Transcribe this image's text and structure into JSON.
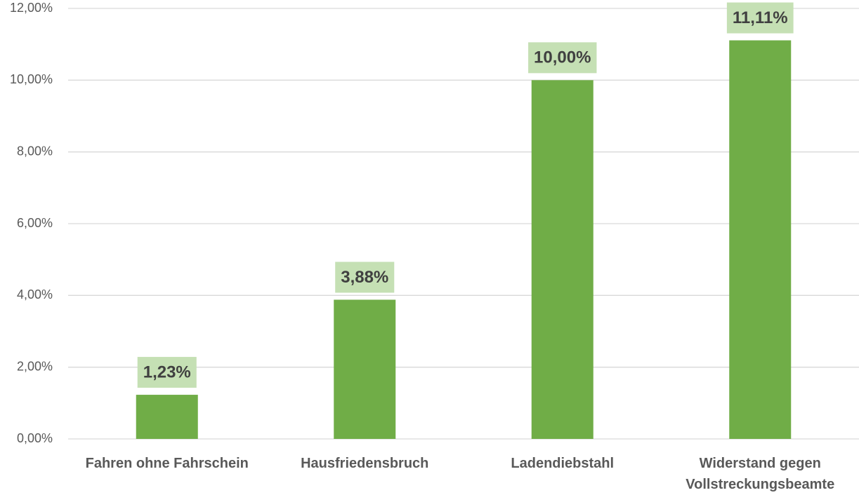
{
  "chart_data": {
    "type": "bar",
    "categories": [
      "Fahren ohne Fahrschein",
      "Hausfriedensbruch",
      "Ladendiebstahl",
      "Widerstand gegen Vollstreckungsbeamte"
    ],
    "values": [
      1.23,
      3.88,
      10.0,
      11.11
    ],
    "value_labels": [
      "1,23%",
      "3,88%",
      "10,00%",
      "11,11%"
    ],
    "color": "#70ad47",
    "label_background": "#c5e0b4",
    "ylim": [
      0,
      12
    ],
    "yticks": [
      {
        "value": 0,
        "label": "0,00%"
      },
      {
        "value": 2,
        "label": "2,00%"
      },
      {
        "value": 4,
        "label": "4,00%"
      },
      {
        "value": 6,
        "label": "6,00%"
      },
      {
        "value": 8,
        "label": "8,00%"
      },
      {
        "value": 10,
        "label": "10,00%"
      },
      {
        "value": 12,
        "label": "12,00%"
      }
    ],
    "grid": true
  }
}
